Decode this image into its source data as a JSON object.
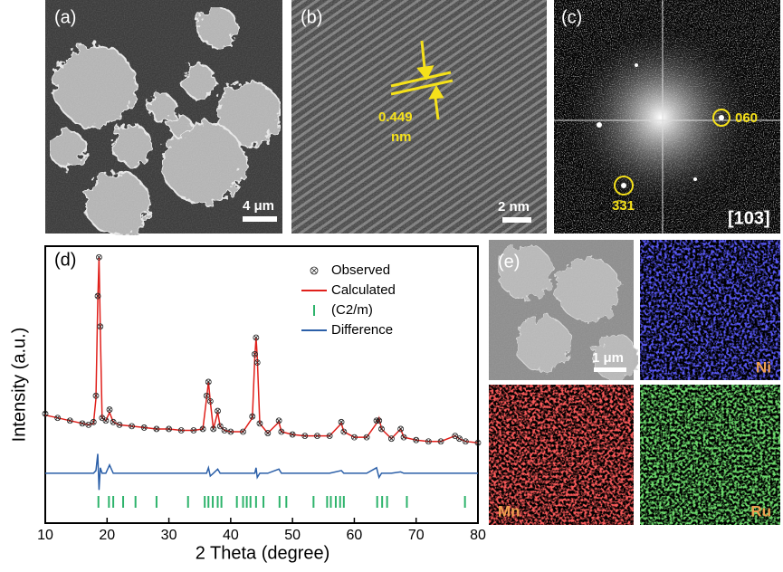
{
  "panels": {
    "a": {
      "label": "(a)",
      "scale_bar": "4 μm"
    },
    "b": {
      "label": "(b)",
      "spacing": "0.449",
      "unit": "nm",
      "scale_bar": "2 nm"
    },
    "c": {
      "label": "(c)",
      "spot_1": "060",
      "spot_2": "3̄31",
      "zone_axis": "[103]"
    },
    "e": {
      "label": "(e)",
      "scale_bar": "1 μm",
      "maps": [
        "Ni",
        "Mn",
        "Ru"
      ]
    }
  },
  "chart_data": {
    "type": "xrd",
    "label": "(d)",
    "x_label": "2 Theta (degree)",
    "y_label": "Intensity (a.u.)",
    "xlim": [
      10,
      80
    ],
    "xticks": [
      10,
      20,
      30,
      40,
      50,
      60,
      70,
      80
    ],
    "ylim": [
      0,
      100
    ],
    "x": [
      10,
      12,
      14,
      16,
      17,
      17.8,
      18.2,
      18.5,
      18.7,
      18.9,
      19.2,
      19.8,
      20.4,
      21,
      22,
      24,
      26,
      28,
      30,
      32,
      34,
      35.5,
      36.1,
      36.4,
      36.7,
      37.2,
      37.9,
      38.3,
      39,
      40,
      42,
      43.5,
      43.9,
      44.1,
      44.3,
      44.7,
      46,
      47.8,
      48.2,
      50,
      52,
      54,
      56,
      57.9,
      58.3,
      60,
      62,
      63.6,
      64,
      64.4,
      66,
      67.5,
      68,
      70,
      72,
      74,
      76.3,
      77,
      78,
      80
    ],
    "series": [
      {
        "name": "Observed",
        "color": "#222222",
        "values": [
          39.5,
          38,
          37,
          36,
          35.5,
          36.5,
          46,
          82,
          96,
          71,
          38,
          37,
          41,
          36.5,
          35.5,
          35,
          34.5,
          34,
          34,
          33.5,
          33.5,
          34,
          46,
          51,
          44,
          34,
          40.5,
          35,
          33.5,
          33,
          33,
          38.5,
          61,
          67,
          58,
          36,
          32.5,
          37,
          33,
          32,
          31.5,
          31.5,
          31.5,
          36.5,
          33,
          31,
          31,
          37,
          37,
          34,
          30.5,
          34,
          31,
          30,
          29.5,
          29.5,
          31.5,
          30.5,
          29.5,
          29
        ]
      },
      {
        "name": "Calculated",
        "color": "#e0201b",
        "values": [
          39,
          38,
          37,
          36,
          35.5,
          36,
          45,
          80,
          96,
          70,
          38,
          37,
          40,
          36.5,
          35.5,
          35,
          34.5,
          34,
          34,
          33.5,
          33.5,
          34,
          45,
          51,
          44,
          34,
          40,
          35,
          33.5,
          33,
          33,
          38,
          60,
          67,
          60,
          36,
          32.5,
          36.5,
          33,
          32,
          31.5,
          31.5,
          31.5,
          36,
          33,
          31,
          31,
          36,
          38,
          34,
          30.5,
          34,
          31,
          30,
          29.5,
          29.5,
          31.5,
          30.5,
          29.5,
          29
        ]
      },
      {
        "name": "(C2/m)",
        "color": "#2db36b",
        "positions": [
          18.6,
          20.3,
          21.0,
          22.6,
          24.6,
          28.0,
          33.1,
          35.8,
          36.4,
          37.1,
          37.9,
          38.5,
          41.0,
          42.0,
          42.6,
          43.2,
          44.1,
          45.3,
          47.9,
          49.0,
          53.4,
          55.6,
          56.2,
          57.0,
          57.7,
          58.3,
          63.7,
          64.5,
          65.3,
          68.5,
          77.9
        ]
      },
      {
        "name": "Difference",
        "color": "#2b5fa8",
        "values": [
          18,
          18,
          18,
          18,
          18,
          18,
          19,
          25,
          12,
          20,
          18,
          18,
          21,
          18,
          18,
          18,
          18,
          18,
          18,
          18,
          18,
          18,
          18,
          20,
          17,
          18,
          19.5,
          18,
          18,
          18,
          18,
          18,
          18,
          20,
          16.5,
          18,
          18,
          19.5,
          18,
          18,
          18,
          18,
          18,
          19,
          18,
          18,
          18,
          20,
          16.5,
          18,
          18,
          18.5,
          18,
          18,
          18,
          18,
          18,
          18,
          18,
          18
        ]
      }
    ]
  }
}
